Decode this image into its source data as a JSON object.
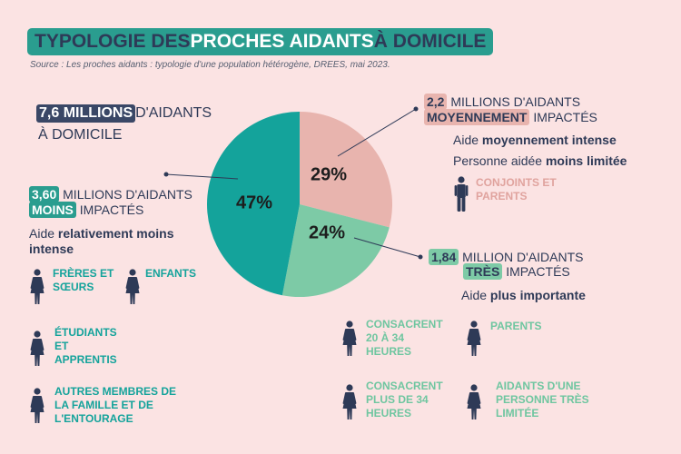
{
  "title": {
    "part1": "TYPOLOGIE DES ",
    "part2": "PROCHES AIDANTS",
    "part3": " À DOMICILE"
  },
  "source": "Source : Les proches aidants : typologie d'une population hétérogène, DREES, mai 2023.",
  "total": {
    "value": "7,6 MILLIONS",
    "line1": "D'AIDANTS",
    "line2": "À DOMICILE"
  },
  "chart_data": {
    "type": "pie",
    "slices": [
      {
        "label": "29%",
        "value": 29,
        "color": "#e8b4ae"
      },
      {
        "label": "24%",
        "value": 24,
        "color": "#7dcaa6"
      },
      {
        "label": "47%",
        "value": 47,
        "color": "#14a39b"
      }
    ]
  },
  "groups": {
    "moins": {
      "value": "3,60",
      "line1_text": " MILLIONS D'AIDANTS",
      "highlight": "MOINS",
      "line2_text": " IMPACTÉS",
      "aide_prefix": "Aide ",
      "aide_bold_line1": "relativement moins",
      "aide_bold_line2": "intense",
      "categories": [
        {
          "line1": "FRÈRES ET",
          "line2": "SŒURS"
        },
        {
          "line1": "ENFANTS"
        },
        {
          "line1": "ÉTUDIANTS",
          "line2": "ET",
          "line3": "APPRENTIS"
        },
        {
          "line1": "AUTRES MEMBRES DE",
          "line2": "LA FAMILLE ET DE",
          "line3": "L'ENTOURAGE"
        }
      ]
    },
    "moyennement": {
      "value": "2,2",
      "line1_text": " MILLIONS D'AIDANTS",
      "highlight": "MOYENNEMENT",
      "line2_text": " IMPACTÉS",
      "aide_prefix": "Aide ",
      "aide_bold": "moyennement intense",
      "personne_prefix": "Personne aidée ",
      "personne_bold": "moins limitée",
      "categories": [
        {
          "line1": "CONJOINTS ET",
          "line2": "PARENTS"
        }
      ]
    },
    "tres": {
      "value": "1,84",
      "line1_text": " MILLION D'AIDANTS",
      "highlight": "TRÈS",
      "line2_text": " IMPACTÉS",
      "aide_prefix": "Aide ",
      "aide_bold": "plus importante",
      "categories": [
        {
          "line1": "CONSACRENT",
          "line2": "20 À 34",
          "line3": "HEURES"
        },
        {
          "line1": "PARENTS"
        },
        {
          "line1": "CONSACRENT",
          "line2": "PLUS DE 34",
          "line3": "HEURES"
        },
        {
          "line1": "AIDANTS D'UNE",
          "line2": "PERSONNE TRÈS",
          "line3": "LIMITÉE"
        }
      ]
    }
  },
  "colors": {
    "background": "#fbe3e3",
    "navy": "#2e3a57",
    "teal": "#14a39b",
    "pink": "#e8b4ae",
    "green": "#7dcaa6"
  },
  "icons": {
    "female": "woman-icon",
    "male": "man-icon"
  }
}
